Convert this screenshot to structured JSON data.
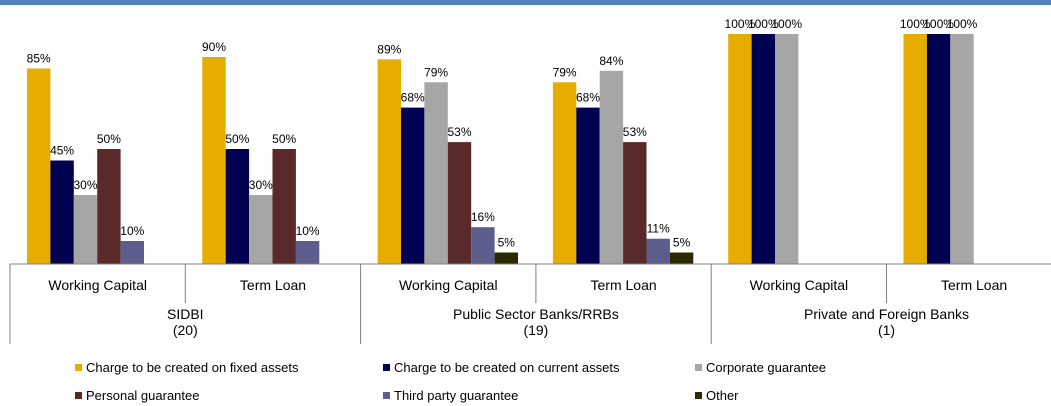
{
  "colors": {
    "top_bar": "#4f81bd",
    "fixed_assets": "#e6ad00",
    "current_assets": "#000050",
    "corporate": "#a6a6a6",
    "personal": "#5a2a2a",
    "third_party": "#5d5d8e",
    "other": "#2a2a00"
  },
  "chart_data": {
    "type": "bar",
    "title": "",
    "xlabel": "",
    "ylabel": "",
    "ylim": [
      0,
      100
    ],
    "value_suffix": "%",
    "groups": [
      {
        "name": "SIDBI",
        "count": "(20)",
        "categories": [
          "Working Capital",
          "Term Loan"
        ]
      },
      {
        "name": "Public Sector Banks/RRBs",
        "count": "(19)",
        "categories": [
          "Working Capital",
          "Term Loan"
        ]
      },
      {
        "name": "Private and Foreign Banks",
        "count": "(1)",
        "categories": [
          "Working Capital",
          "Term Loan"
        ]
      }
    ],
    "categories": [
      "SIDBI - Working Capital",
      "SIDBI - Term Loan",
      "Public Sector Banks/RRBs - Working Capital",
      "Public Sector Banks/RRBs - Term Loan",
      "Private and Foreign Banks - Working Capital",
      "Private and Foreign Banks - Term Loan"
    ],
    "series": [
      {
        "name": "Charge to be created on fixed assets",
        "color_key": "fixed_assets",
        "values": [
          85,
          90,
          89,
          79,
          100,
          100
        ]
      },
      {
        "name": "Charge to be created on current assets",
        "color_key": "current_assets",
        "values": [
          45,
          50,
          68,
          68,
          100,
          100
        ]
      },
      {
        "name": "Corporate guarantee",
        "color_key": "corporate",
        "values": [
          30,
          30,
          79,
          84,
          100,
          100
        ]
      },
      {
        "name": "Personal guarantee",
        "color_key": "personal",
        "values": [
          50,
          50,
          53,
          53,
          null,
          null
        ]
      },
      {
        "name": "Third party guarantee",
        "color_key": "third_party",
        "values": [
          10,
          10,
          16,
          11,
          null,
          null
        ]
      },
      {
        "name": "Other",
        "color_key": "other",
        "values": [
          null,
          null,
          5,
          5,
          null,
          null
        ]
      }
    ],
    "legend_position": "bottom",
    "grid": false
  }
}
